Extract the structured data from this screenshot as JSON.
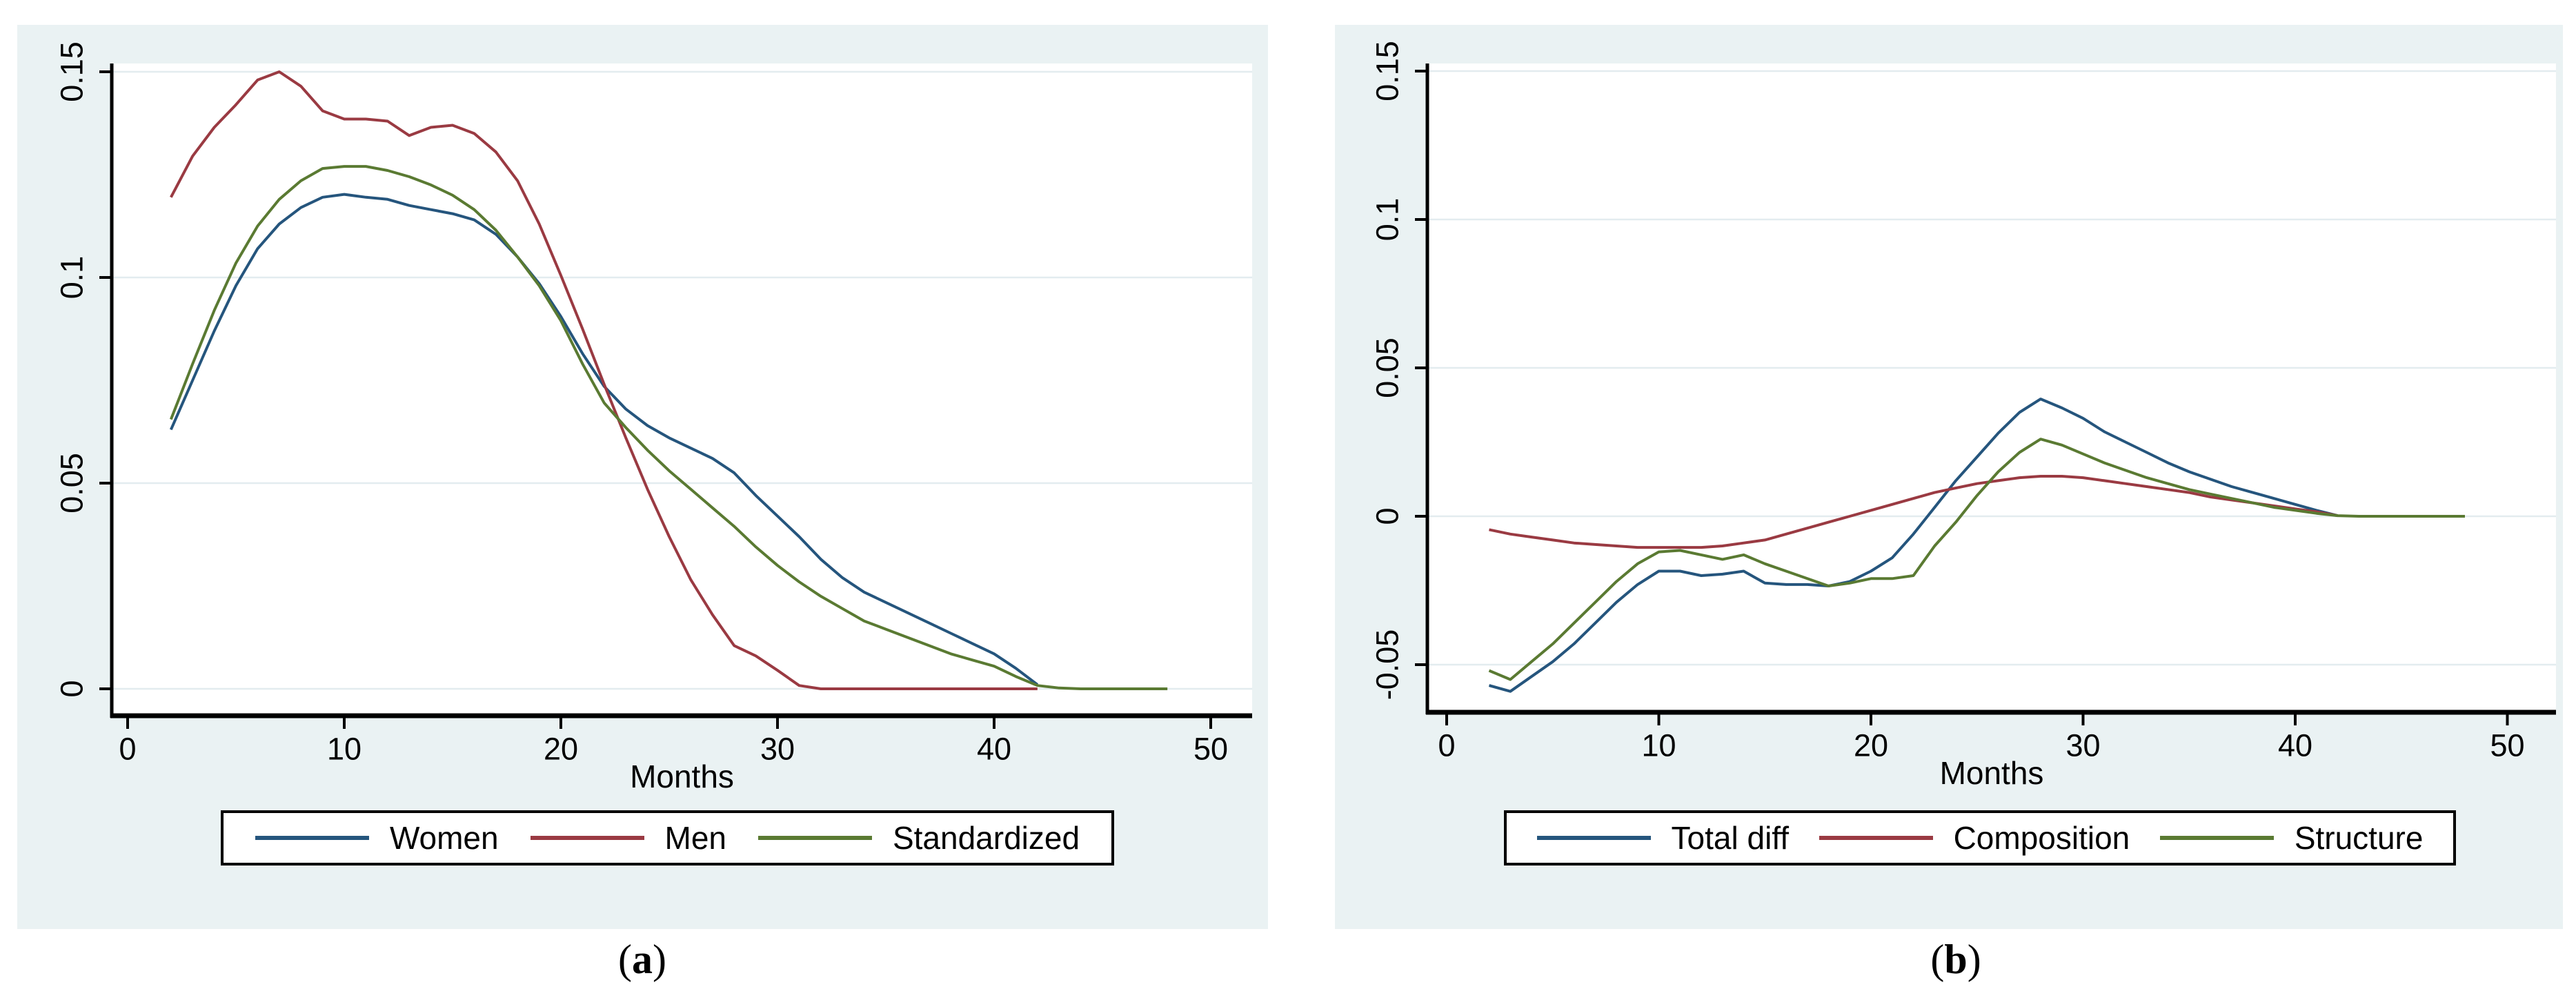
{
  "style": {
    "panel_background": "#eaf2f3",
    "plot_background": "#ffffff",
    "grid_color": "#e3ecef",
    "axis_color": "#000000",
    "text_color": "#000000",
    "legend_border_color": "#000000",
    "navy": "#25557d",
    "maroon": "#9a3a42",
    "green": "#5a7a32"
  },
  "captions": {
    "a": {
      "pre": "(",
      "letter": "a",
      "post": ")"
    },
    "b": {
      "pre": "(",
      "letter": "b",
      "post": ")"
    }
  },
  "chart_data": [
    {
      "id": "a",
      "type": "line",
      "title": "",
      "xlabel": "Months",
      "ylabel": "",
      "x_ticks": [
        0,
        10,
        20,
        30,
        40,
        50
      ],
      "x_tick_labels": [
        "0",
        "10",
        "20",
        "30",
        "40",
        "50"
      ],
      "y_ticks": [
        0,
        0.05,
        0.1,
        0.15
      ],
      "y_tick_labels": [
        "0",
        "0.05",
        "0.1",
        "0.15"
      ],
      "xlim": [
        -0.75,
        52
      ],
      "ylim": [
        -0.0065,
        0.152
      ],
      "grid": "horizontal",
      "legend_position": "bottom",
      "legend": [
        "Women",
        "Men",
        "Standardized"
      ],
      "series": [
        {
          "name": "Women",
          "color": "#25557d",
          "x": [
            2,
            3,
            4,
            5,
            6,
            7,
            8,
            9,
            10,
            11,
            12,
            13,
            14,
            15,
            16,
            17,
            18,
            19,
            20,
            21,
            22,
            23,
            24,
            25,
            26,
            27,
            28,
            29,
            30,
            31,
            32,
            33,
            34,
            35,
            36,
            37,
            38,
            39,
            40,
            41,
            42
          ],
          "y": [
            0.063,
            0.075,
            0.087,
            0.098,
            0.107,
            0.113,
            0.117,
            0.1195,
            0.1202,
            0.1195,
            0.119,
            0.1175,
            0.1165,
            0.1155,
            0.114,
            0.1105,
            0.105,
            0.0985,
            0.0905,
            0.0815,
            0.0735,
            0.068,
            0.064,
            0.061,
            0.0585,
            0.056,
            0.0525,
            0.047,
            0.042,
            0.037,
            0.0315,
            0.027,
            0.0235,
            0.021,
            0.0185,
            0.016,
            0.0135,
            0.011,
            0.0085,
            0.005,
            0.001
          ]
        },
        {
          "name": "Men",
          "color": "#9a3a42",
          "x": [
            2,
            3,
            4,
            5,
            6,
            7,
            8,
            9,
            10,
            11,
            12,
            13,
            14,
            15,
            16,
            17,
            18,
            19,
            20,
            21,
            22,
            23,
            24,
            25,
            26,
            27,
            28,
            29,
            30,
            31,
            32,
            33,
            34,
            35,
            36,
            37,
            38,
            39,
            40,
            41,
            42
          ],
          "y": [
            0.1195,
            0.1295,
            0.1365,
            0.142,
            0.148,
            0.15,
            0.1465,
            0.1405,
            0.1385,
            0.1385,
            0.138,
            0.1345,
            0.1365,
            0.137,
            0.135,
            0.1305,
            0.1235,
            0.113,
            0.1005,
            0.0875,
            0.074,
            0.061,
            0.0485,
            0.037,
            0.0265,
            0.018,
            0.0105,
            0.008,
            0.0045,
            0.0008,
            0,
            0,
            0,
            0,
            0,
            0,
            0,
            0,
            0,
            0,
            0
          ]
        },
        {
          "name": "Standardized",
          "color": "#5a7a32",
          "x": [
            2,
            3,
            4,
            5,
            6,
            7,
            8,
            9,
            10,
            11,
            12,
            13,
            14,
            15,
            16,
            17,
            18,
            19,
            20,
            21,
            22,
            23,
            24,
            25,
            26,
            27,
            28,
            29,
            30,
            31,
            32,
            33,
            34,
            35,
            36,
            37,
            38,
            39,
            40,
            41,
            42,
            43,
            44,
            45,
            46,
            47,
            48
          ],
          "y": [
            0.0655,
            0.079,
            0.092,
            0.1035,
            0.1125,
            0.119,
            0.1235,
            0.1265,
            0.127,
            0.127,
            0.126,
            0.1245,
            0.1225,
            0.12,
            0.1165,
            0.1115,
            0.105,
            0.098,
            0.0895,
            0.079,
            0.0695,
            0.0635,
            0.058,
            0.053,
            0.0485,
            0.044,
            0.0395,
            0.0345,
            0.03,
            0.026,
            0.0225,
            0.0195,
            0.0165,
            0.0145,
            0.0125,
            0.0105,
            0.0085,
            0.007,
            0.0055,
            0.003,
            0.0008,
            0.0002,
            0,
            0,
            0,
            0,
            0
          ]
        }
      ]
    },
    {
      "id": "b",
      "type": "line",
      "title": "",
      "xlabel": "Months",
      "ylabel": "",
      "x_ticks": [
        0,
        10,
        20,
        30,
        40,
        50
      ],
      "x_tick_labels": [
        "0",
        "10",
        "20",
        "30",
        "40",
        "50"
      ],
      "y_ticks": [
        -0.05,
        0,
        0.05,
        0.1,
        0.15
      ],
      "y_tick_labels": [
        "-0.05",
        "0",
        "0.05",
        "0.1",
        "0.15"
      ],
      "xlim": [
        -0.75,
        52
      ],
      "ylim": [
        -0.066,
        0.1525
      ],
      "grid": "horizontal",
      "legend_position": "bottom",
      "legend": [
        "Total diff",
        "Composition",
        "Structure"
      ],
      "series": [
        {
          "name": "Total diff",
          "color": "#25557d",
          "x": [
            2,
            3,
            4,
            5,
            6,
            7,
            8,
            9,
            10,
            11,
            12,
            13,
            14,
            15,
            16,
            17,
            18,
            19,
            20,
            21,
            22,
            23,
            24,
            25,
            26,
            27,
            28,
            29,
            30,
            31,
            32,
            33,
            34,
            35,
            36,
            37,
            38,
            39,
            40,
            41,
            42
          ],
          "y": [
            -0.057,
            -0.059,
            -0.054,
            -0.049,
            -0.043,
            -0.036,
            -0.029,
            -0.023,
            -0.0185,
            -0.0185,
            -0.02,
            -0.0195,
            -0.0185,
            -0.0225,
            -0.023,
            -0.023,
            -0.0235,
            -0.022,
            -0.0185,
            -0.014,
            -0.006,
            0.003,
            0.012,
            0.02,
            0.028,
            0.035,
            0.0395,
            0.0365,
            0.033,
            0.0285,
            0.025,
            0.0215,
            0.018,
            0.015,
            0.0125,
            0.01,
            0.008,
            0.006,
            0.004,
            0.002,
            0.0002
          ]
        },
        {
          "name": "Composition",
          "color": "#9a3a42",
          "x": [
            2,
            3,
            4,
            5,
            6,
            7,
            8,
            9,
            10,
            11,
            12,
            13,
            14,
            15,
            16,
            17,
            18,
            19,
            20,
            21,
            22,
            23,
            24,
            25,
            26,
            27,
            28,
            29,
            30,
            31,
            32,
            33,
            34,
            35,
            36,
            37,
            38,
            39,
            40,
            41,
            42
          ],
          "y": [
            -0.0045,
            -0.006,
            -0.007,
            -0.008,
            -0.009,
            -0.0095,
            -0.01,
            -0.0105,
            -0.0105,
            -0.0105,
            -0.0105,
            -0.01,
            -0.009,
            -0.008,
            -0.006,
            -0.004,
            -0.002,
            0,
            0.002,
            0.004,
            0.006,
            0.008,
            0.0095,
            0.011,
            0.012,
            0.013,
            0.0135,
            0.0135,
            0.013,
            0.012,
            0.011,
            0.01,
            0.009,
            0.008,
            0.0065,
            0.0055,
            0.0045,
            0.0035,
            0.0025,
            0.0015,
            0.0002
          ]
        },
        {
          "name": "Structure",
          "color": "#5a7a32",
          "x": [
            2,
            3,
            4,
            5,
            6,
            7,
            8,
            9,
            10,
            11,
            12,
            13,
            14,
            15,
            16,
            17,
            18,
            19,
            20,
            21,
            22,
            23,
            24,
            25,
            26,
            27,
            28,
            29,
            30,
            31,
            32,
            33,
            34,
            35,
            36,
            37,
            38,
            39,
            40,
            41,
            42,
            43,
            44,
            45,
            46,
            47,
            48
          ],
          "y": [
            -0.052,
            -0.055,
            -0.049,
            -0.043,
            -0.036,
            -0.029,
            -0.022,
            -0.016,
            -0.012,
            -0.0115,
            -0.013,
            -0.0145,
            -0.013,
            -0.016,
            -0.0185,
            -0.021,
            -0.0235,
            -0.0225,
            -0.021,
            -0.021,
            -0.02,
            -0.01,
            -0.002,
            0.007,
            0.015,
            0.0215,
            0.026,
            0.024,
            0.021,
            0.018,
            0.0155,
            0.013,
            0.011,
            0.009,
            0.0075,
            0.006,
            0.0045,
            0.003,
            0.002,
            0.001,
            0.0002,
            0,
            0,
            0,
            0,
            0,
            0
          ]
        }
      ]
    }
  ]
}
